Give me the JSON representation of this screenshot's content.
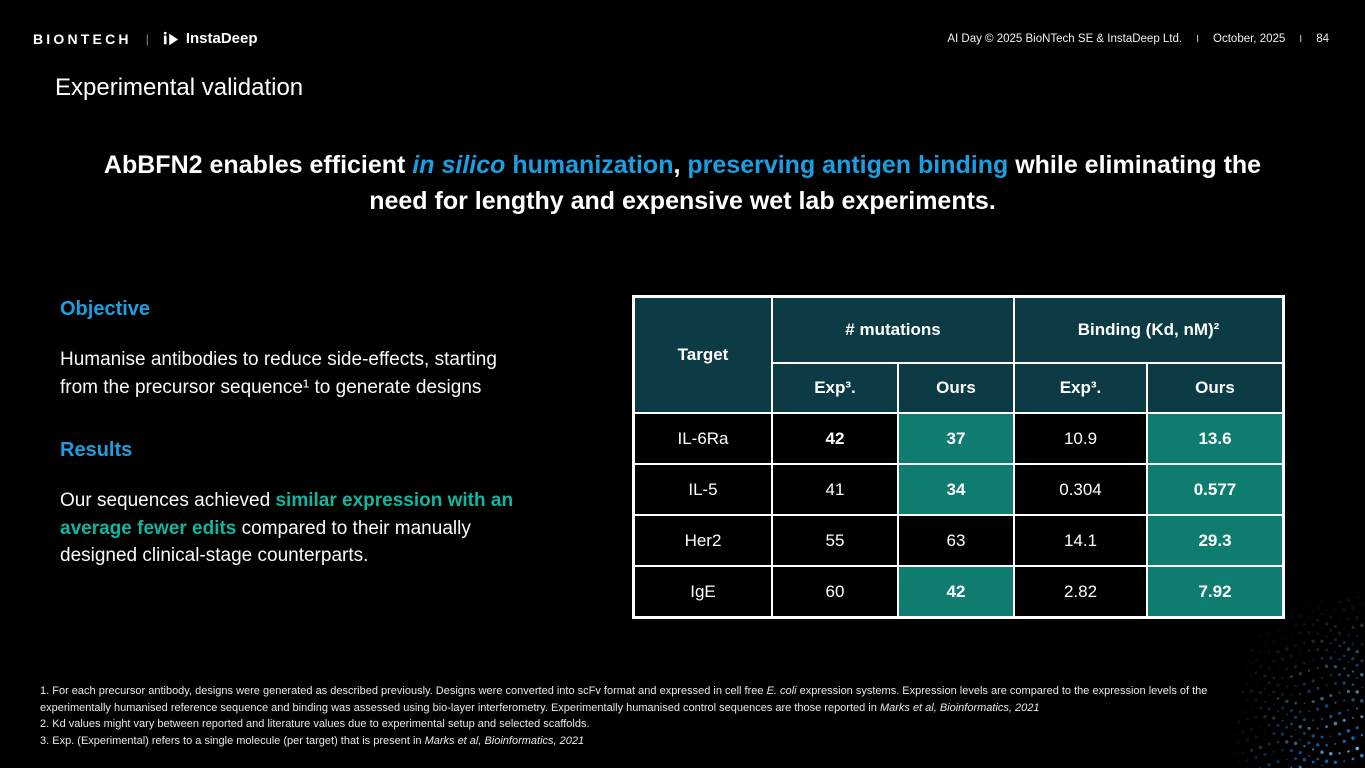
{
  "colors": {
    "background": "#000000",
    "accent_blue": "#1B9FE0",
    "teal_text": "#12B5A0",
    "teal_cell": "#0E7C6F",
    "table_header_cell": "#0C3B46",
    "table_border": "#FFFFFF"
  },
  "header": {
    "biontech_logo": "BIONTECH",
    "logo_divider": "|",
    "instadeep_logo": "InstaDeep",
    "meta_left": "AI Day © 2025  BioNTech SE & InstaDeep Ltd.",
    "meta_divider": "I",
    "meta_date": "October, 2025",
    "meta_page": "84"
  },
  "kicker": "Experimental validation",
  "headline": [
    {
      "t": "AbBFN2 enables efficient "
    },
    {
      "t": "in silico",
      "s": "blue italic"
    },
    {
      "t": " humanization",
      "s": "blue"
    },
    {
      "t": ", "
    },
    {
      "t": "preserving antigen binding",
      "s": "blue"
    },
    {
      "t": " while eliminating the need for lengthy and expensive wet lab experiments."
    }
  ],
  "left": {
    "objective_heading": "Objective",
    "objective_body": [
      {
        "t": "Humanise antibodies to reduce side-effects, starting from the precursor sequence¹ to generate designs"
      }
    ],
    "results_heading": "Results",
    "results_body": [
      {
        "t": "Our sequences achieved "
      },
      {
        "t": "similar expression with an average fewer edits",
        "s": "teal"
      },
      {
        "t": " compared to their manually designed clinical-stage counterparts."
      }
    ]
  },
  "table": {
    "target_header": "Target",
    "group_headers": [
      "# mutations",
      "Binding (Kd, nM)²"
    ],
    "subheaders": [
      "Exp³.",
      "Ours",
      "Exp³.",
      "Ours"
    ],
    "rows": [
      {
        "target": "IL-6Ra",
        "cells": [
          {
            "v": "42",
            "bold": true
          },
          {
            "v": "37",
            "hl": true
          },
          {
            "v": "10.9"
          },
          {
            "v": "13.6",
            "hl": true
          }
        ]
      },
      {
        "target": "IL-5",
        "cells": [
          {
            "v": "41"
          },
          {
            "v": "34",
            "hl": true
          },
          {
            "v": "0.304"
          },
          {
            "v": "0.577",
            "hl": true
          }
        ]
      },
      {
        "target": "Her2",
        "cells": [
          {
            "v": "55"
          },
          {
            "v": "63"
          },
          {
            "v": "14.1"
          },
          {
            "v": "29.3",
            "hl": true
          }
        ]
      },
      {
        "target": "IgE",
        "cells": [
          {
            "v": "60"
          },
          {
            "v": "42",
            "hl": true
          },
          {
            "v": "2.82"
          },
          {
            "v": "7.92",
            "hl": true
          }
        ]
      }
    ]
  },
  "footnotes": [
    [
      {
        "t": "1. For each precursor antibody, designs were generated as described previously. Designs were converted into scFv format and expressed in cell free "
      },
      {
        "t": "E. coli",
        "s": "italic"
      },
      {
        "t": " expression systems. Expression levels are compared to the expression levels of the experimentally humanised reference sequence and binding was assessed using bio-layer interferometry. Experimentally humanised control sequences are those reported in "
      },
      {
        "t": "Marks et al, Bioinformatics, 2021",
        "s": "italic"
      }
    ],
    [
      {
        "t": "2. Kd values might vary between reported and literature values due to experimental setup and selected scaffolds."
      }
    ],
    [
      {
        "t": "3. Exp. (Experimental) refers to a single molecule (per target) that is present in "
      },
      {
        "t": "Marks et al, Bioinformatics, 2021",
        "s": "italic"
      }
    ]
  ]
}
